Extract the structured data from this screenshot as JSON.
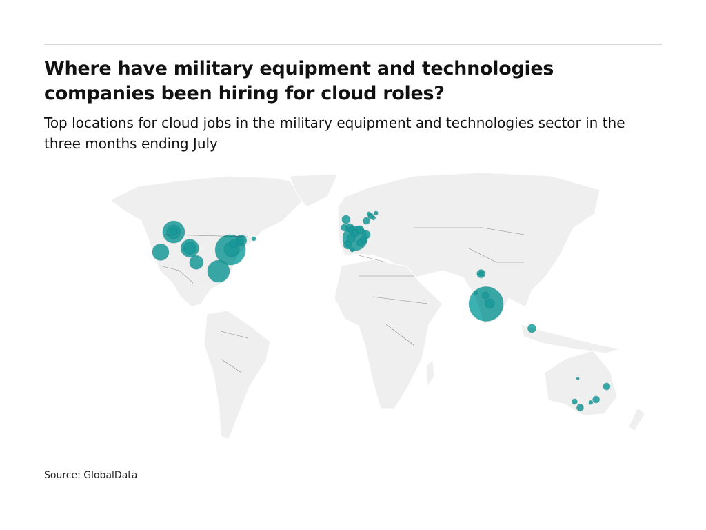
{
  "header": {
    "title": "Where have military equipment and technologies companies been hiring for cloud roles?",
    "subtitle": "Top locations for cloud jobs in the military equipment and technologies sector in the three months ending July"
  },
  "footer": {
    "source": "Source: GlobalData"
  },
  "colors": {
    "bubble": "#1aa3a3",
    "land": "#efefef",
    "background": "#ffffff"
  },
  "map_data": {
    "projection": "robinson",
    "bubbles": [
      {
        "lat": 47.6,
        "lon": -122.3,
        "size": 16
      },
      {
        "lat": 47.6,
        "lon": -122.3,
        "size": 10
      },
      {
        "lat": 47.9,
        "lon": -122.5,
        "size": 5
      },
      {
        "lat": 37.8,
        "lon": -122.4,
        "size": 12
      },
      {
        "lat": 39.7,
        "lon": -105.0,
        "size": 13
      },
      {
        "lat": 39.7,
        "lon": -105.0,
        "size": 9
      },
      {
        "lat": 32.8,
        "lon": -96.8,
        "size": 10
      },
      {
        "lat": 38.9,
        "lon": -78.5,
        "size": 22
      },
      {
        "lat": 39.2,
        "lon": -77.8,
        "size": 11
      },
      {
        "lat": 42.0,
        "lon": -78.0,
        "size": 6
      },
      {
        "lat": 28.5,
        "lon": -81.4,
        "size": 16
      },
      {
        "lat": 43.5,
        "lon": -74.0,
        "size": 8
      },
      {
        "lat": 43.7,
        "lon": -74.5,
        "size": 5
      },
      {
        "lat": 44.3,
        "lon": -66.0,
        "size": 3
      },
      {
        "lat": 44.6,
        "lon": 1.4,
        "size": 18
      },
      {
        "lat": 53.7,
        "lon": -5.0,
        "size": 6
      },
      {
        "lat": 49.7,
        "lon": -2.3,
        "size": 6
      },
      {
        "lat": 48.7,
        "lon": -0.9,
        "size": 5
      },
      {
        "lat": 48.7,
        "lon": 4.6,
        "size": 6
      },
      {
        "lat": 46.3,
        "lon": 8.9,
        "size": 6
      },
      {
        "lat": 53.0,
        "lon": 9.6,
        "size": 5
      },
      {
        "lat": 55.4,
        "lon": 13.0,
        "size": 4
      },
      {
        "lat": 54.4,
        "lon": 14.8,
        "size": 3
      },
      {
        "lat": 56.7,
        "lon": 17.0,
        "size": 3
      },
      {
        "lat": 56.4,
        "lon": 11.7,
        "size": 3
      },
      {
        "lat": 43.6,
        "lon": 6.8,
        "size": 5
      },
      {
        "lat": 42.3,
        "lon": 4.6,
        "size": 5
      },
      {
        "lat": 41.3,
        "lon": -3.5,
        "size": 6
      },
      {
        "lat": 38.9,
        "lon": -0.5,
        "size": 3
      },
      {
        "lat": 47.0,
        "lon": 1.3,
        "size": 5
      },
      {
        "lat": 49.7,
        "lon": -6.0,
        "size": 5
      },
      {
        "lat": 44.6,
        "lon": -1.3,
        "size": 6
      },
      {
        "lat": 27.3,
        "lon": 77.2,
        "size": 6
      },
      {
        "lat": 27.3,
        "lon": 77.2,
        "size": 3
      },
      {
        "lat": 12.6,
        "lon": 77.6,
        "size": 25
      },
      {
        "lat": 16.8,
        "lon": 77.6,
        "size": 5
      },
      {
        "lat": 12.8,
        "lon": 79.7,
        "size": 7
      },
      {
        "lat": 18.1,
        "lon": 72.0,
        "size": 3
      },
      {
        "lat": 0.7,
        "lon": 103.8,
        "size": 6
      },
      {
        "lat": -23.7,
        "lon": 133.9,
        "size": 2
      },
      {
        "lat": -27.5,
        "lon": 153.0,
        "size": 5
      },
      {
        "lat": -34.9,
        "lon": 138.6,
        "size": 4
      },
      {
        "lat": -37.8,
        "lon": 144.5,
        "size": 5
      },
      {
        "lat": -35.3,
        "lon": 149.1,
        "size": 3
      },
      {
        "lat": -33.9,
        "lon": 151.2,
        "size": 5
      }
    ]
  }
}
